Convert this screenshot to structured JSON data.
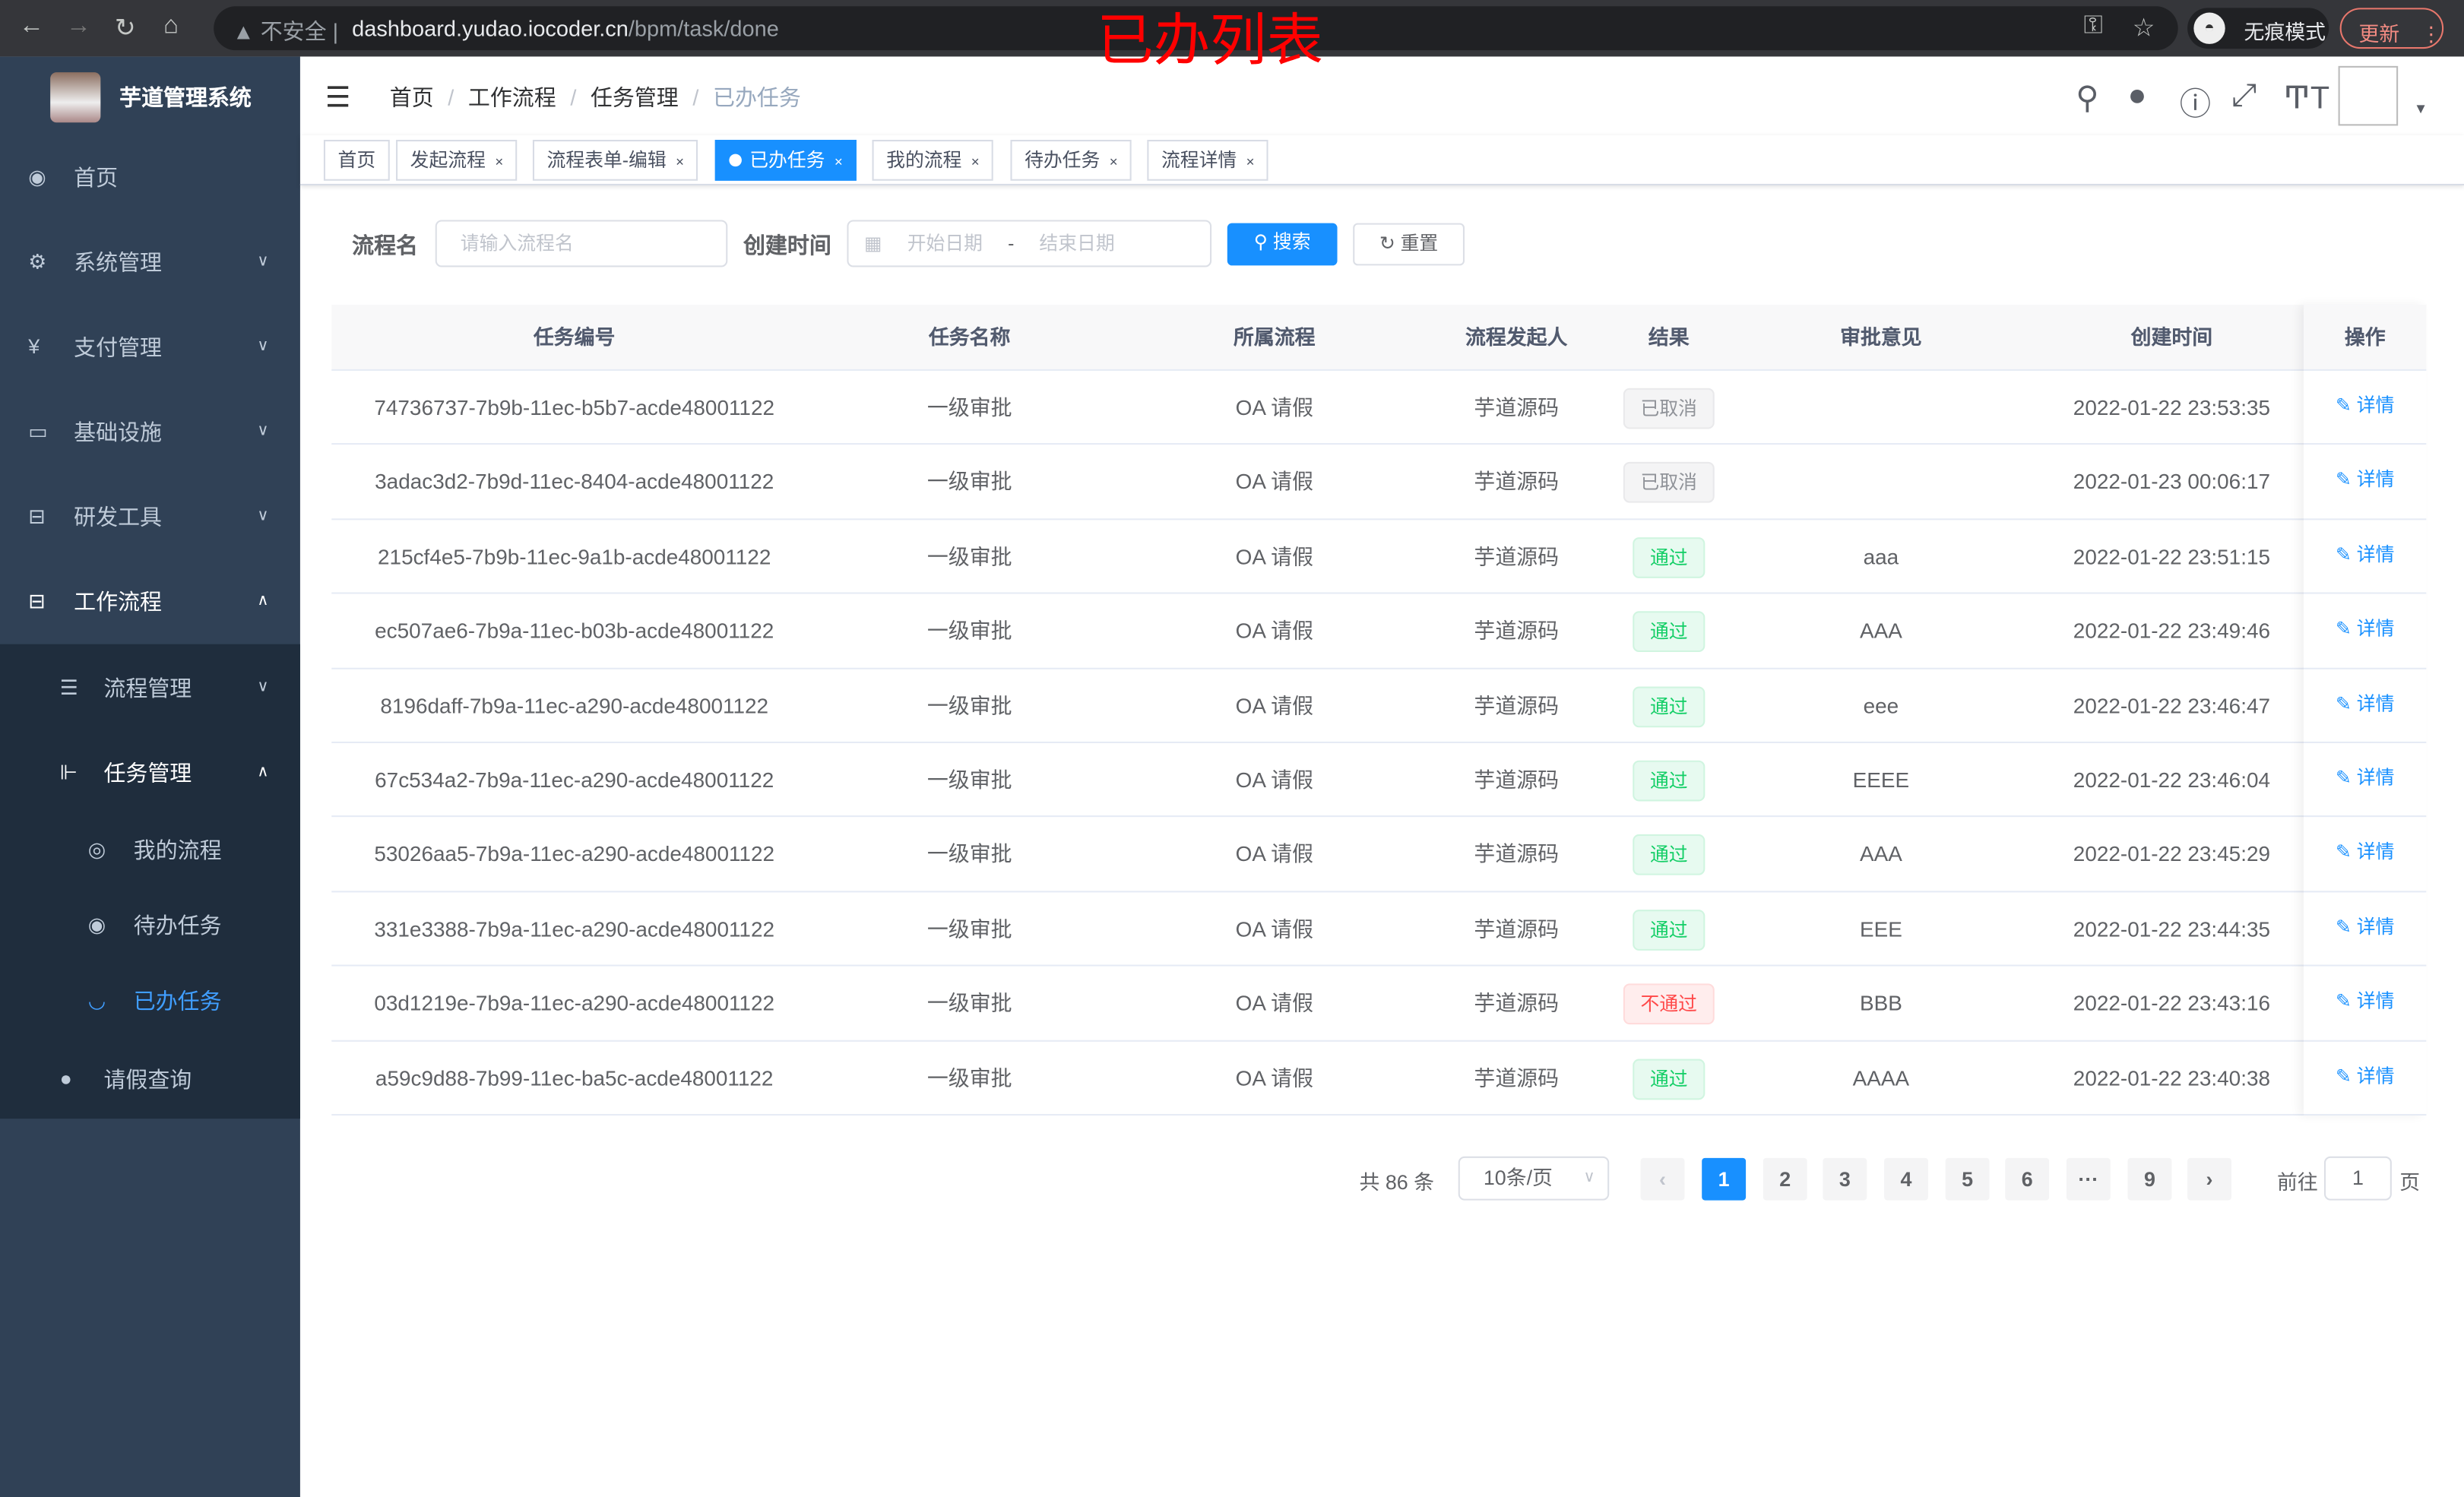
{
  "browser": {
    "insecure_label": "不安全",
    "url_host": "dashboard.yudao.iocoder.cn",
    "url_path": "/bpm/task/done",
    "incognito_label": "无痕模式",
    "update_label": "更新"
  },
  "annotation": "已办列表",
  "sidebar": {
    "title": "芋道管理系统",
    "items": [
      {
        "label": "首页",
        "icon": "dashboard-icon"
      },
      {
        "label": "系统管理",
        "icon": "gear-icon"
      },
      {
        "label": "支付管理",
        "icon": "yen-icon"
      },
      {
        "label": "基础设施",
        "icon": "monitor-icon"
      },
      {
        "label": "研发工具",
        "icon": "toolbox-icon"
      },
      {
        "label": "工作流程",
        "icon": "toolbox-icon"
      },
      {
        "label": "流程管理",
        "icon": "list-icon"
      },
      {
        "label": "任务管理",
        "icon": "tree-icon"
      },
      {
        "label": "我的流程",
        "icon": "people-icon"
      },
      {
        "label": "待办任务",
        "icon": "eye-icon"
      },
      {
        "label": "已办任务",
        "icon": "eye-closed-icon"
      },
      {
        "label": "请假查询",
        "icon": "user-icon"
      }
    ]
  },
  "breadcrumb": [
    "首页",
    "工作流程",
    "任务管理",
    "已办任务"
  ],
  "tags": [
    {
      "label": "首页"
    },
    {
      "label": "发起流程"
    },
    {
      "label": "流程表单-编辑"
    },
    {
      "label": "已办任务",
      "active": true
    },
    {
      "label": "我的流程"
    },
    {
      "label": "待办任务"
    },
    {
      "label": "流程详情"
    }
  ],
  "filter": {
    "name_label": "流程名",
    "name_placeholder": "请输入流程名",
    "time_label": "创建时间",
    "start_placeholder": "开始日期",
    "range_sep": "-",
    "end_placeholder": "结束日期",
    "search": "搜索",
    "reset": "重置"
  },
  "table": {
    "headers": [
      "任务编号",
      "任务名称",
      "所属流程",
      "流程发起人",
      "结果",
      "审批意见",
      "创建时间",
      "操作"
    ],
    "rows": [
      {
        "id": "74736737-7b9b-11ec-b5b7-acde48001122",
        "name": "一级审批",
        "process": "OA 请假",
        "starter": "芋道源码",
        "result": "已取消",
        "status": "info",
        "comment": "",
        "time": "2022-01-22 23:53:35",
        "op": "详情"
      },
      {
        "id": "3adac3d2-7b9d-11ec-8404-acde48001122",
        "name": "一级审批",
        "process": "OA 请假",
        "starter": "芋道源码",
        "result": "已取消",
        "status": "info",
        "comment": "",
        "time": "2022-01-23 00:06:17",
        "op": "详情"
      },
      {
        "id": "215cf4e5-7b9b-11ec-9a1b-acde48001122",
        "name": "一级审批",
        "process": "OA 请假",
        "starter": "芋道源码",
        "result": "通过",
        "status": "success",
        "comment": "aaa",
        "time": "2022-01-22 23:51:15",
        "op": "详情"
      },
      {
        "id": "ec507ae6-7b9a-11ec-b03b-acde48001122",
        "name": "一级审批",
        "process": "OA 请假",
        "starter": "芋道源码",
        "result": "通过",
        "status": "success",
        "comment": "AAA",
        "time": "2022-01-22 23:49:46",
        "op": "详情"
      },
      {
        "id": "8196daff-7b9a-11ec-a290-acde48001122",
        "name": "一级审批",
        "process": "OA 请假",
        "starter": "芋道源码",
        "result": "通过",
        "status": "success",
        "comment": "eee",
        "time": "2022-01-22 23:46:47",
        "op": "详情"
      },
      {
        "id": "67c534a2-7b9a-11ec-a290-acde48001122",
        "name": "一级审批",
        "process": "OA 请假",
        "starter": "芋道源码",
        "result": "通过",
        "status": "success",
        "comment": "EEEE",
        "time": "2022-01-22 23:46:04",
        "op": "详情"
      },
      {
        "id": "53026aa5-7b9a-11ec-a290-acde48001122",
        "name": "一级审批",
        "process": "OA 请假",
        "starter": "芋道源码",
        "result": "通过",
        "status": "success",
        "comment": "AAA",
        "time": "2022-01-22 23:45:29",
        "op": "详情"
      },
      {
        "id": "331e3388-7b9a-11ec-a290-acde48001122",
        "name": "一级审批",
        "process": "OA 请假",
        "starter": "芋道源码",
        "result": "通过",
        "status": "success",
        "comment": "EEE",
        "time": "2022-01-22 23:44:35",
        "op": "详情"
      },
      {
        "id": "03d1219e-7b9a-11ec-a290-acde48001122",
        "name": "一级审批",
        "process": "OA 请假",
        "starter": "芋道源码",
        "result": "不通过",
        "status": "danger",
        "comment": "BBB",
        "time": "2022-01-22 23:43:16",
        "op": "详情"
      },
      {
        "id": "a59c9d88-7b99-11ec-ba5c-acde48001122",
        "name": "一级审批",
        "process": "OA 请假",
        "starter": "芋道源码",
        "result": "通过",
        "status": "success",
        "comment": "AAAA",
        "time": "2022-01-22 23:40:38",
        "op": "详情"
      }
    ]
  },
  "pagination": {
    "total": "共 86 条",
    "page_size": "10条/页",
    "pages": [
      "1",
      "2",
      "3",
      "4",
      "5",
      "6",
      "···",
      "9"
    ],
    "current": "1",
    "goto_label": "前往",
    "goto_value": "1",
    "page_suffix": "页"
  },
  "colors": {
    "primary": "#1890ff",
    "sidebar": "#304156",
    "submenu": "#1f2d3d",
    "success": "#13ce66",
    "danger": "#ff4949"
  }
}
